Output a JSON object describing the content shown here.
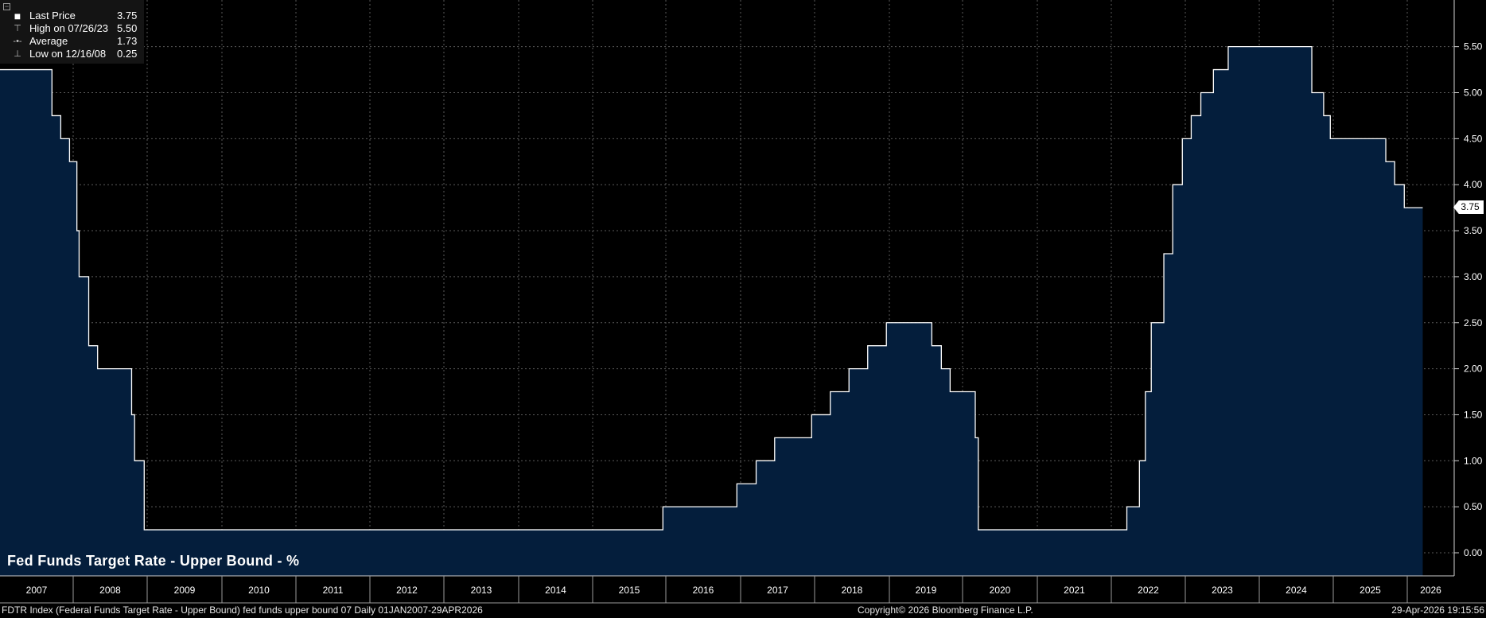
{
  "legend": {
    "rows": [
      {
        "marker": "■",
        "label": "Last Price",
        "value": "3.75"
      },
      {
        "marker": "⊤",
        "label": "High on 07/26/23",
        "value": "5.50"
      },
      {
        "marker": "-•-",
        "label": "Average",
        "value": "1.73"
      },
      {
        "marker": "⊥",
        "label": "Low on 12/16/08",
        "value": "0.25"
      }
    ],
    "collapse_symbol": "−"
  },
  "last_marker_label": "3.75",
  "footer": {
    "left": "FDTR Index (Federal Funds Target Rate - Upper Bound) fed funds upper bound 07 Daily 01JAN2007-29APR2026",
    "center": "Copyright© 2026 Bloomberg Finance L.P.",
    "right": "29-Apr-2026 19:15:56"
  },
  "colors": {
    "background": "#000000",
    "area_fill": "#041e3c",
    "line": "#ffffff",
    "grid": "#5a5a5a"
  },
  "chart_data": {
    "type": "area",
    "title": "Fed Funds Target Rate - Upper Bound - %",
    "xlabel": "",
    "ylabel": "",
    "x_range": [
      2007.0,
      2026.33
    ],
    "ylim": [
      -0.25,
      6.0
    ],
    "y_ticks": [
      "0.00",
      "0.50",
      "1.00",
      "1.50",
      "2.00",
      "2.50",
      "3.00",
      "3.50",
      "4.00",
      "4.50",
      "5.00",
      "5.50"
    ],
    "x_tick_labels": [
      "2007",
      "2008",
      "2009",
      "2010",
      "2011",
      "2012",
      "2013",
      "2014",
      "2015",
      "2016",
      "2017",
      "2018",
      "2019",
      "2020",
      "2021",
      "2022",
      "2023",
      "2024",
      "2025",
      "2026"
    ],
    "grid": true,
    "legend_position": "top-left",
    "series": [
      {
        "name": "Last Price",
        "step_points": [
          [
            2007.0,
            5.25
          ],
          [
            2007.71,
            4.75
          ],
          [
            2007.83,
            4.5
          ],
          [
            2007.95,
            4.25
          ],
          [
            2008.05,
            3.5
          ],
          [
            2008.08,
            3.0
          ],
          [
            2008.21,
            2.25
          ],
          [
            2008.33,
            2.0
          ],
          [
            2008.79,
            1.5
          ],
          [
            2008.83,
            1.0
          ],
          [
            2008.96,
            0.25
          ],
          [
            2015.96,
            0.5
          ],
          [
            2016.95,
            0.75
          ],
          [
            2017.21,
            1.0
          ],
          [
            2017.46,
            1.25
          ],
          [
            2017.96,
            1.5
          ],
          [
            2018.21,
            1.75
          ],
          [
            2018.46,
            2.0
          ],
          [
            2018.71,
            2.25
          ],
          [
            2018.96,
            2.5
          ],
          [
            2019.58,
            2.25
          ],
          [
            2019.71,
            2.0
          ],
          [
            2019.83,
            1.75
          ],
          [
            2020.17,
            1.25
          ],
          [
            2020.21,
            0.25
          ],
          [
            2022.21,
            0.5
          ],
          [
            2022.38,
            1.0
          ],
          [
            2022.46,
            1.75
          ],
          [
            2022.54,
            2.5
          ],
          [
            2022.71,
            3.25
          ],
          [
            2022.83,
            4.0
          ],
          [
            2022.96,
            4.5
          ],
          [
            2023.08,
            4.75
          ],
          [
            2023.21,
            5.0
          ],
          [
            2023.38,
            5.25
          ],
          [
            2023.58,
            5.5
          ],
          [
            2024.71,
            5.0
          ],
          [
            2024.87,
            4.75
          ],
          [
            2024.96,
            4.5
          ],
          [
            2025.71,
            4.25
          ],
          [
            2025.83,
            4.0
          ],
          [
            2025.96,
            3.75
          ],
          [
            2026.33,
            3.75
          ]
        ]
      }
    ],
    "summary": {
      "last": 3.75,
      "high": 5.5,
      "average": 1.73,
      "low": 0.25
    }
  }
}
